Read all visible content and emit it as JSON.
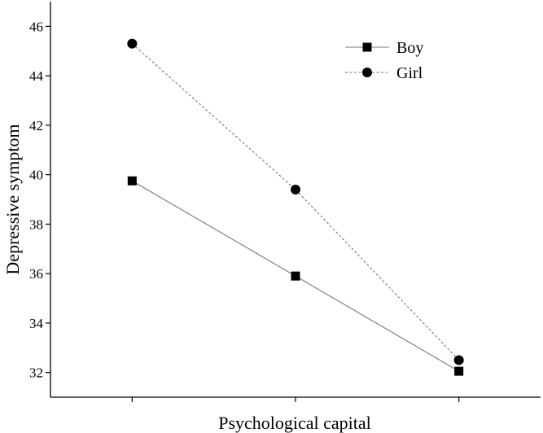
{
  "chart_data": {
    "type": "line",
    "title": "",
    "xlabel": "Psychological capital",
    "ylabel": "Depressive symptom",
    "x": [
      1,
      2,
      3
    ],
    "xlim": [
      0.5,
      3.5
    ],
    "ylim": [
      31,
      47
    ],
    "yticks": [
      32,
      34,
      36,
      38,
      40,
      42,
      44,
      46
    ],
    "grid": false,
    "legend_position": "top-right",
    "series": [
      {
        "name": "Boy",
        "values": [
          39.75,
          35.9,
          32.05
        ],
        "marker": "square",
        "line_style": "solid",
        "color": "#000000",
        "line_color": "#777777"
      },
      {
        "name": "Girl",
        "values": [
          45.3,
          39.4,
          32.5
        ],
        "marker": "circle",
        "line_style": "dotted",
        "color": "#000000",
        "line_color": "#777777"
      }
    ]
  }
}
